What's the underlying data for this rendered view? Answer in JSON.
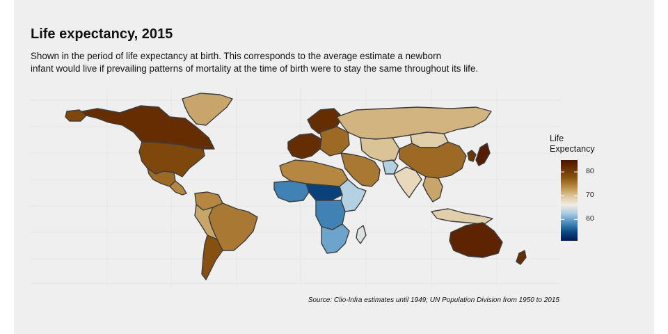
{
  "header": {
    "title": "Life expectancy, 2015",
    "subtitle_lines": [
      "Shown in the period of life expectancy at birth. This corresponds to the average estimate a newborn",
      "infant would live if prevailing patterns of mortality at the time of birth were to stay the same throughout its life."
    ]
  },
  "legend": {
    "title_lines": [
      "Life",
      "Expectancy"
    ],
    "ticks": [
      {
        "value": 80,
        "label": "80"
      },
      {
        "value": 70,
        "label": "70"
      },
      {
        "value": 60,
        "label": "60"
      }
    ],
    "range": [
      51,
      85
    ],
    "colors": [
      "#021852",
      "#0b4b84",
      "#4a8cbd",
      "#a6cbe2",
      "#f3ece0",
      "#dcc59a",
      "#b98c45",
      "#8b5513",
      "#6b3303",
      "#4d1400"
    ]
  },
  "caption": "Source: Clio-Infra estimates until 1949; UN Population Division from 1950 to 2015",
  "map_data": {
    "metric": "life expectancy at birth",
    "year": 2015,
    "regions": [
      {
        "region": "Canada",
        "value": 82
      },
      {
        "region": "Greenland",
        "value": 72
      },
      {
        "region": "United States",
        "value": 79
      },
      {
        "region": "Mexico",
        "value": 76
      },
      {
        "region": "Central America",
        "value": 74
      },
      {
        "region": "Colombia/Venezuela",
        "value": 74
      },
      {
        "region": "Brazil",
        "value": 75
      },
      {
        "region": "Peru/Bolivia",
        "value": 72
      },
      {
        "region": "Chile/Argentina",
        "value": 78
      },
      {
        "region": "Western Europe",
        "value": 82
      },
      {
        "region": "Scandinavia",
        "value": 82
      },
      {
        "region": "Eastern Europe",
        "value": 76
      },
      {
        "region": "Russia",
        "value": 71
      },
      {
        "region": "Kazakhstan/Central Asia",
        "value": 70
      },
      {
        "region": "Mongolia",
        "value": 69
      },
      {
        "region": "China",
        "value": 76
      },
      {
        "region": "Japan",
        "value": 84
      },
      {
        "region": "Korea",
        "value": 81
      },
      {
        "region": "India",
        "value": 68
      },
      {
        "region": "Southeast Asia",
        "value": 72
      },
      {
        "region": "Middle East",
        "value": 75
      },
      {
        "region": "Afghanistan",
        "value": 63
      },
      {
        "region": "North Africa",
        "value": 74
      },
      {
        "region": "West Africa",
        "value": 58
      },
      {
        "region": "Sahel",
        "value": 54
      },
      {
        "region": "Central Africa",
        "value": 58
      },
      {
        "region": "East Africa",
        "value": 63
      },
      {
        "region": "Southern Africa",
        "value": 60
      },
      {
        "region": "Madagascar",
        "value": 65
      },
      {
        "region": "Indonesia",
        "value": 69
      },
      {
        "region": "Australia",
        "value": 83
      },
      {
        "region": "New Zealand",
        "value": 82
      }
    ]
  }
}
